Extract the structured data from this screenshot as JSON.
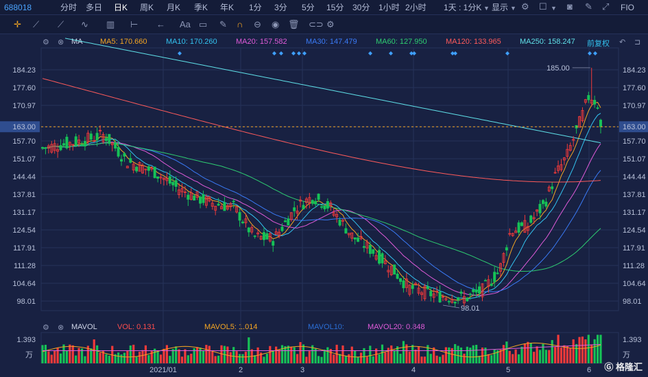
{
  "topbar": {
    "code": "688018",
    "periods": [
      "分时",
      "多日",
      "日K",
      "周K",
      "月K",
      "季K",
      "年K",
      "1分",
      "3分",
      "5分",
      "15分",
      "30分",
      "1小时",
      "2小时",
      "1天 : 1分K"
    ],
    "active": "日K",
    "display_label": "显示",
    "fio_label": "FIO"
  },
  "legend": {
    "ma_label": "MA",
    "ma": [
      {
        "text": "MA5: 170.660",
        "color": "#f5a623"
      },
      {
        "text": "MA10: 170.260",
        "color": "#33c3f0"
      },
      {
        "text": "MA20: 157.582",
        "color": "#e05bd9"
      },
      {
        "text": "MA30: 147.479",
        "color": "#3a7bf7"
      },
      {
        "text": "MA60: 127.950",
        "color": "#2ecc71"
      },
      {
        "text": "MA120: 133.965",
        "color": "#ff5b5b"
      },
      {
        "text": "MA250: 158.247",
        "color": "#5fe0e8"
      }
    ],
    "adjust": "前复权"
  },
  "vol_legend": {
    "label": "MAVOL",
    "items": [
      {
        "text": "VOL: 0.131",
        "color": "#ff4d4d"
      },
      {
        "text": "MAVOL5: 1.014",
        "color": "#f5a623"
      },
      {
        "text": "MAVOL10:",
        "color": "#2b6fd6"
      },
      {
        "text": "MAVOL20: 0.848",
        "color": "#e05bd9"
      }
    ]
  },
  "colors": {
    "up": "#f23a3a",
    "down": "#17c157",
    "background": "#182142",
    "grid": "#26325a",
    "current": "#f5a623"
  },
  "chart_data": {
    "type": "candlestick",
    "yticks": [
      "184.23",
      "177.60",
      "170.97",
      "163.00",
      "157.70",
      "151.07",
      "144.44",
      "137.81",
      "131.17",
      "124.54",
      "117.91",
      "111.28",
      "104.64",
      "98.01"
    ],
    "ylim": [
      98.01,
      184.23
    ],
    "current_price": "163.00",
    "high_label": "185.00",
    "low_label": "98.01",
    "xticks": [
      "2021/01",
      "2",
      "3",
      "4",
      "5",
      "6"
    ],
    "vol_ytick": "1.393",
    "vol_unit": "万",
    "watermark": "格隆汇"
  }
}
